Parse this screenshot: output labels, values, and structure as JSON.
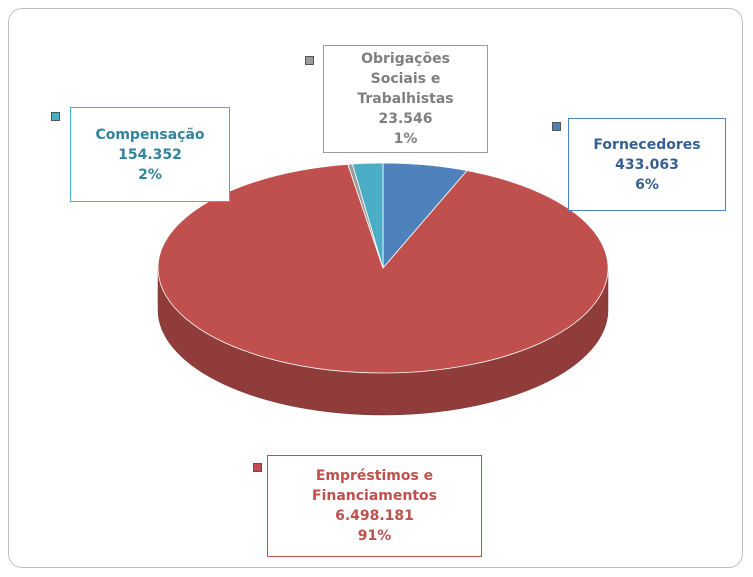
{
  "chart_data": {
    "type": "pie3d",
    "categories": [
      "Fornecedores",
      "Empréstimos e Financiamentos",
      "Obrigações Sociais e Trabalhistas",
      "Compensação"
    ],
    "values": [
      433063,
      6498181,
      23546,
      154352
    ],
    "value_labels": [
      "433.063",
      "6.498.181",
      "23.546",
      "154.352"
    ],
    "percents": [
      6,
      91,
      1,
      2
    ],
    "percent_labels": [
      "6%",
      "91%",
      "1%",
      "2%"
    ],
    "colors": [
      "#4f81bd",
      "#c0504d",
      "#9b9b9b",
      "#4bacc6"
    ]
  }
}
